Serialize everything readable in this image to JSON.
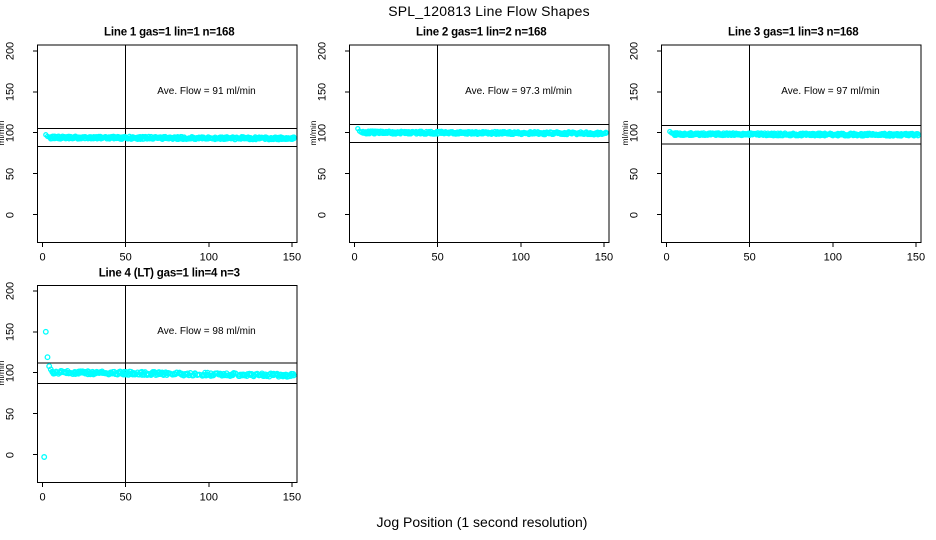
{
  "title": "SPL_120813  Line Flow Shapes",
  "x_axis_label": "Jog Position (1 second resolution)",
  "colors": {
    "point": "#00ffff",
    "line": "#000000",
    "background": "#ffffff",
    "text": "#000000"
  },
  "chart_data": {
    "type": "scatter",
    "grid_layout": "2 rows x 3 cols, 4 panels used",
    "x_ticks": [
      0,
      50,
      100,
      150
    ],
    "y_ticks": [
      0,
      50,
      100,
      150,
      200
    ],
    "xlim": [
      -3,
      153
    ],
    "ylim": [
      -34,
      207
    ],
    "y_axis_label": "ml/min",
    "vline_x": 50,
    "grid": false,
    "legend": "none",
    "seed": 120813,
    "panels": [
      {
        "id": "line1",
        "row": 0,
        "col": 0,
        "title": "Line 1 gas=1 lin=1 n=168",
        "ave_label": "Ave. Flow =  91  ml/min",
        "ave_flow": 91,
        "ref_upper": 105,
        "ref_lower": 83,
        "transient": [
          [
            2,
            97.5
          ],
          [
            3,
            95.5
          ],
          [
            4,
            94.6
          ]
        ],
        "band": {
          "x_start": 5,
          "x_end": 151,
          "v_start": 94.2,
          "v_end": 93.0,
          "jitter": 1.8,
          "per_x": 3
        },
        "point_radius": 2.0
      },
      {
        "id": "line2",
        "row": 0,
        "col": 1,
        "title": "Line 2 gas=1 lin=2 n=168",
        "ave_label": "Ave. Flow =  97.3  ml/min",
        "ave_flow": 97.3,
        "ref_upper": 110,
        "ref_lower": 88,
        "transient": [
          [
            2,
            105
          ],
          [
            3,
            102
          ],
          [
            4,
            100.6
          ]
        ],
        "band": {
          "x_start": 5,
          "x_end": 151,
          "v_start": 100.3,
          "v_end": 99.2,
          "jitter": 1.8,
          "per_x": 3
        },
        "point_radius": 2.0
      },
      {
        "id": "line3",
        "row": 0,
        "col": 2,
        "title": "Line 3 gas=1 lin=3 n=168",
        "ave_label": "Ave. Flow =  97  ml/min",
        "ave_flow": 97,
        "ref_upper": 109,
        "ref_lower": 86,
        "transient": [
          [
            2,
            101.5
          ],
          [
            3,
            99.8
          ]
        ],
        "band": {
          "x_start": 4,
          "x_end": 151,
          "v_start": 98.4,
          "v_end": 97.4,
          "jitter": 1.7,
          "per_x": 3
        },
        "point_radius": 2.0
      },
      {
        "id": "line4",
        "row": 1,
        "col": 0,
        "title": "Line 4 (LT) gas=1 lin=4 n=3",
        "ave_label": "Ave. Flow =  98  ml/min",
        "ave_flow": 98,
        "ref_upper": 112,
        "ref_lower": 87,
        "transient": [
          [
            1,
            -3
          ],
          [
            2,
            150
          ],
          [
            3,
            119
          ],
          [
            4,
            108
          ],
          [
            5,
            104
          ]
        ],
        "band": {
          "x_start": 6,
          "x_end": 151,
          "v_start": 100.5,
          "v_end": 96.8,
          "jitter": 2.0,
          "per_x": 2,
          "skip": 0.12
        },
        "point_radius": 2.3
      }
    ]
  }
}
